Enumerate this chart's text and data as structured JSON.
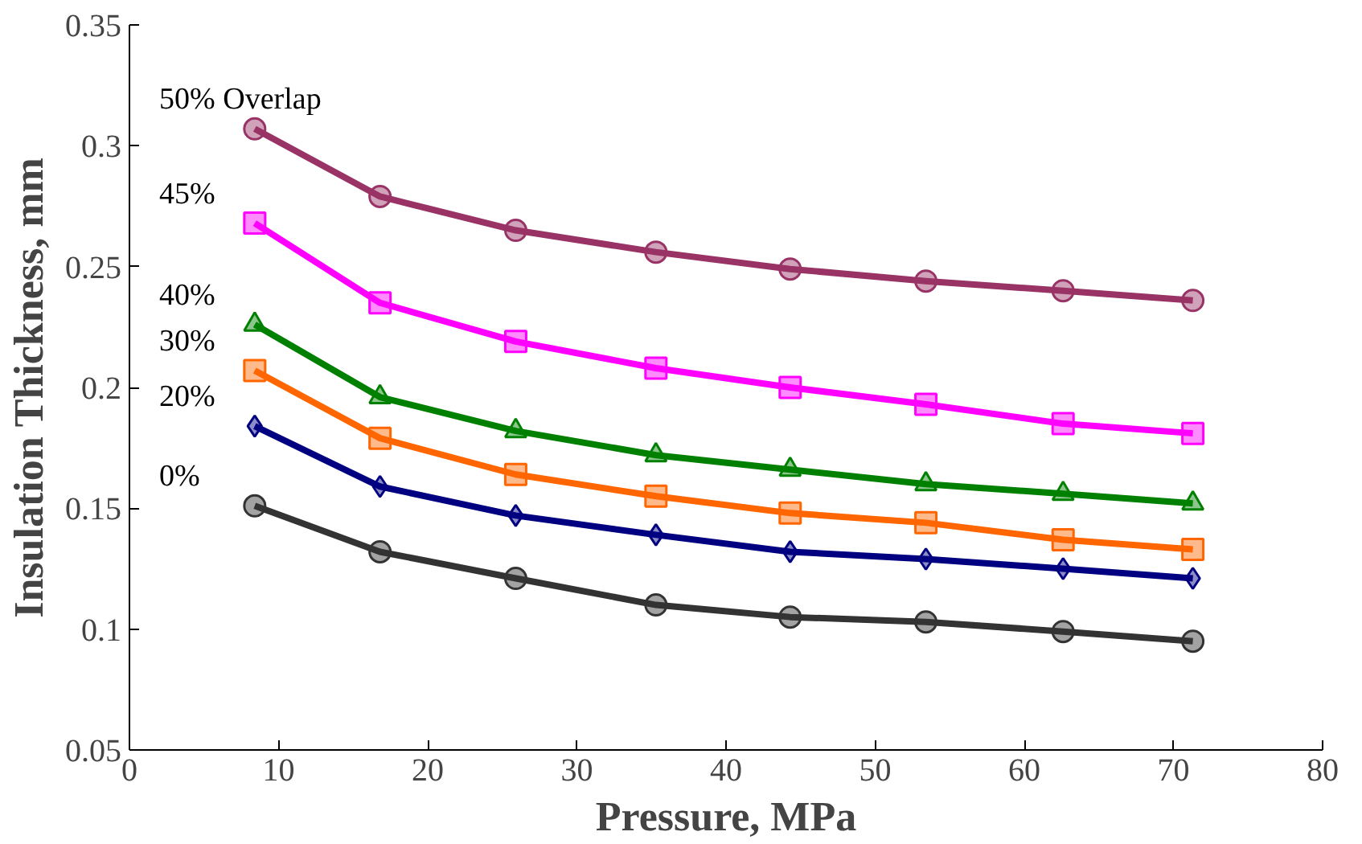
{
  "chart_data": {
    "type": "line",
    "xlabel": "Pressure, MPa",
    "ylabel": "Insulation Thickness, mm",
    "x": [
      8.4,
      16.8,
      25.9,
      35.3,
      44.3,
      53.4,
      62.6,
      71.3
    ],
    "series": [
      {
        "name": "50% Overlap",
        "color": "#993366",
        "marker": "circle",
        "values": [
          0.307,
          0.279,
          0.265,
          0.256,
          0.249,
          0.244,
          0.24,
          0.236
        ]
      },
      {
        "name": "45%",
        "color": "#ff00ff",
        "marker": "square",
        "values": [
          0.268,
          0.235,
          0.219,
          0.208,
          0.2,
          0.193,
          0.185,
          0.181
        ]
      },
      {
        "name": "40%",
        "color": "#008000",
        "marker": "triangle",
        "values": [
          0.226,
          0.196,
          0.182,
          0.172,
          0.166,
          0.16,
          0.156,
          0.152
        ]
      },
      {
        "name": "30%",
        "color": "#ff6600",
        "marker": "square",
        "values": [
          0.207,
          0.179,
          0.164,
          0.155,
          0.148,
          0.144,
          0.137,
          0.133
        ]
      },
      {
        "name": "20%",
        "color": "#000080",
        "marker": "diamond",
        "values": [
          0.184,
          0.159,
          0.147,
          0.139,
          0.132,
          0.129,
          0.125,
          0.121
        ]
      },
      {
        "name": "0%",
        "color": "#333333",
        "marker": "circle",
        "values": [
          0.151,
          0.132,
          0.121,
          0.11,
          0.105,
          0.103,
          0.099,
          0.095
        ]
      }
    ],
    "xlim": [
      0,
      80
    ],
    "xticks": [
      0,
      10,
      20,
      30,
      40,
      50,
      60,
      70,
      80
    ],
    "ylim": [
      0.05,
      0.35
    ],
    "yticks": [
      0.05,
      0.1,
      0.15,
      0.2,
      0.25,
      0.3,
      0.35
    ],
    "grid": false,
    "line_style": "solid"
  }
}
